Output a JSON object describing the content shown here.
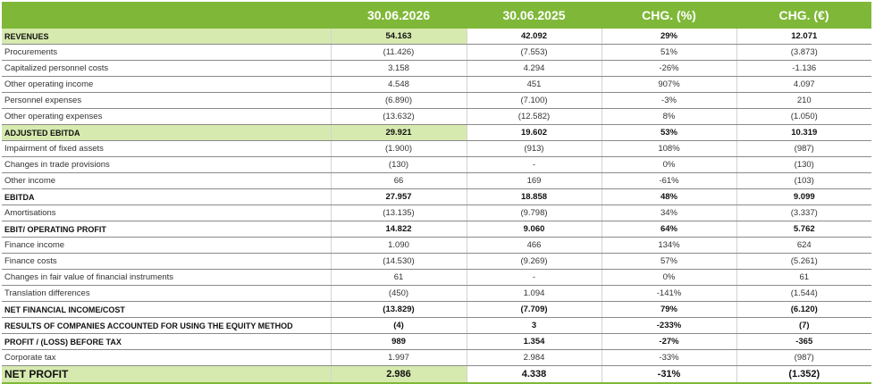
{
  "headers": [
    "",
    "30.06.2026",
    "30.06.2025",
    "CHG. (%)",
    "CHG. (€)"
  ],
  "rows": [
    {
      "label": "REVENUES",
      "v2026": "54.163",
      "v2025": "42.092",
      "chg_pct": "29%",
      "chg_eur": "12.071"
    },
    {
      "label": "Procurements",
      "v2026": "(11.426)",
      "v2025": "(7.553)",
      "chg_pct": "51%",
      "chg_eur": "(3.873)"
    },
    {
      "label": "Capitalized personnel costs",
      "v2026": "3.158",
      "v2025": "4.294",
      "chg_pct": "-26%",
      "chg_eur": "-1.136"
    },
    {
      "label": "Other operating income",
      "v2026": "4.548",
      "v2025": "451",
      "chg_pct": "907%",
      "chg_eur": "4.097"
    },
    {
      "label": "Personnel expenses",
      "v2026": "(6.890)",
      "v2025": "(7.100)",
      "chg_pct": "-3%",
      "chg_eur": "210"
    },
    {
      "label": "Other operating expenses",
      "v2026": "(13.632)",
      "v2025": "(12.582)",
      "chg_pct": "8%",
      "chg_eur": "(1.050)"
    },
    {
      "label": "ADJUSTED EBITDA",
      "v2026": "29.921",
      "v2025": "19.602",
      "chg_pct": "53%",
      "chg_eur": "10.319"
    },
    {
      "label": "Impairment  of fixed assets",
      "v2026": "(1.900)",
      "v2025": "(913)",
      "chg_pct": "108%",
      "chg_eur": "(987)"
    },
    {
      "label": "Changes in trade provisions",
      "v2026": "(130)",
      "v2025": "-",
      "chg_pct": "0%",
      "chg_eur": "(130)"
    },
    {
      "label": "Other income",
      "v2026": "66",
      "v2025": "169",
      "chg_pct": "-61%",
      "chg_eur": "(103)"
    },
    {
      "label": "EBITDA",
      "v2026": "27.957",
      "v2025": "18.858",
      "chg_pct": "48%",
      "chg_eur": "9.099"
    },
    {
      "label": "Amortisations",
      "v2026": "(13.135)",
      "v2025": "(9.798)",
      "chg_pct": "34%",
      "chg_eur": "(3.337)"
    },
    {
      "label": "EBIT/ OPERATING PROFIT",
      "v2026": "14.822",
      "v2025": "9.060",
      "chg_pct": "64%",
      "chg_eur": "5.762"
    },
    {
      "label": "Finance income",
      "v2026": "1.090",
      "v2025": "466",
      "chg_pct": "134%",
      "chg_eur": "624"
    },
    {
      "label": "Finance costs",
      "v2026": "(14.530)",
      "v2025": "(9.269)",
      "chg_pct": "57%",
      "chg_eur": "(5.261)"
    },
    {
      "label": "Changes in fair value of financial instruments",
      "v2026": "61",
      "v2025": "-",
      "chg_pct": "0%",
      "chg_eur": "61"
    },
    {
      "label": "Translation differences",
      "v2026": "(450)",
      "v2025": "1.094",
      "chg_pct": "-141%",
      "chg_eur": "(1.544)"
    },
    {
      "label": "NET FINANCIAL INCOME/COST",
      "v2026": "(13.829)",
      "v2025": "(7.709)",
      "chg_pct": "79%",
      "chg_eur": "(6.120)"
    },
    {
      "label": "RESULTS OF COMPANIES ACCOUNTED FOR USING THE EQUITY METHOD",
      "v2026": "(4)",
      "v2025": "3",
      "chg_pct": "-233%",
      "chg_eur": "(7)"
    },
    {
      "label": "PROFIT / (LOSS) BEFORE TAX",
      "v2026": "989",
      "v2025": "1.354",
      "chg_pct": "-27%",
      "chg_eur": "-365"
    },
    {
      "label": "Corporate tax",
      "v2026": "1.997",
      "v2025": "2.984",
      "chg_pct": "-33%",
      "chg_eur": "(987)"
    },
    {
      "label": "NET PROFIT",
      "v2026": "2.986",
      "v2025": "4.338",
      "chg_pct": "-31%",
      "chg_eur": "(1.352)"
    }
  ],
  "colors": {
    "header_green": "#7fb838",
    "highlight_green": "#d6eaaf"
  }
}
